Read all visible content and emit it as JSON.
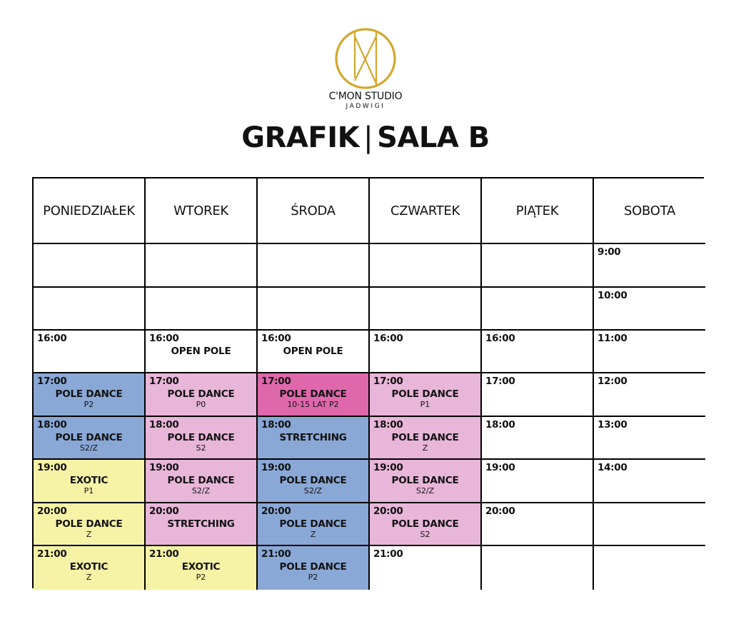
{
  "brand": {
    "name": "C'MON STUDIO",
    "location": "JADWIGI"
  },
  "title": {
    "left": "GRAFIK",
    "separator": "|",
    "right": "SALA B"
  },
  "colors": {
    "blue": "#8aa8d6",
    "pink": "#e8b6d8",
    "magenta": "#df68ac",
    "yellow": "#f6f3a6",
    "logo_gold": "#d4a72c"
  },
  "days": [
    "PONIEDZIAŁEK",
    "WTOREK",
    "ŚRODA",
    "CZWARTEK",
    "PIĄTEK",
    "SOBOTA"
  ],
  "rows": [
    [
      {},
      {},
      {},
      {},
      {},
      {
        "time": "9:00"
      }
    ],
    [
      {},
      {},
      {},
      {},
      {},
      {
        "time": "10:00"
      }
    ],
    [
      {
        "time": "16:00"
      },
      {
        "time": "16:00",
        "name": "OPEN POLE"
      },
      {
        "time": "16:00",
        "name": "OPEN POLE"
      },
      {
        "time": "16:00"
      },
      {
        "time": "16:00"
      },
      {
        "time": "11:00"
      }
    ],
    [
      {
        "time": "17:00",
        "name": "POLE DANCE",
        "level": "P2",
        "color": "blue"
      },
      {
        "time": "17:00",
        "name": "POLE DANCE",
        "level": "P0",
        "color": "pink"
      },
      {
        "time": "17:00",
        "name": "POLE DANCE",
        "level": "10-15 LAT P2",
        "color": "magenta"
      },
      {
        "time": "17:00",
        "name": "POLE DANCE",
        "level": "P1",
        "color": "pink"
      },
      {
        "time": "17:00"
      },
      {
        "time": "12:00"
      }
    ],
    [
      {
        "time": "18:00",
        "name": "POLE DANCE",
        "level": "S2/Z",
        "color": "blue"
      },
      {
        "time": "18:00",
        "name": "POLE DANCE",
        "level": "S2",
        "color": "pink"
      },
      {
        "time": "18:00",
        "name": "STRETCHING",
        "color": "blue"
      },
      {
        "time": "18:00",
        "name": "POLE DANCE",
        "level": "Z",
        "color": "pink"
      },
      {
        "time": "18:00"
      },
      {
        "time": "13:00"
      }
    ],
    [
      {
        "time": "19:00",
        "name": "EXOTIC",
        "level": "P1",
        "color": "yellow"
      },
      {
        "time": "19:00",
        "name": "POLE DANCE",
        "level": "S2/Z",
        "color": "pink"
      },
      {
        "time": "19:00",
        "name": "POLE DANCE",
        "level": "S2/Z",
        "color": "blue"
      },
      {
        "time": "19:00",
        "name": "POLE DANCE",
        "level": "S2/Z",
        "color": "pink"
      },
      {
        "time": "19:00"
      },
      {
        "time": "14:00"
      }
    ],
    [
      {
        "time": "20:00",
        "name": "POLE DANCE",
        "level": "Z",
        "color": "yellow"
      },
      {
        "time": "20:00",
        "name": "STRETCHING",
        "color": "pink"
      },
      {
        "time": "20:00",
        "name": "POLE DANCE",
        "level": "Z",
        "color": "blue"
      },
      {
        "time": "20:00",
        "name": "POLE DANCE",
        "level": "S2",
        "color": "pink"
      },
      {
        "time": "20:00"
      },
      {}
    ],
    [
      {
        "time": "21:00",
        "name": "EXOTIC",
        "level": "Z",
        "color": "yellow"
      },
      {
        "time": "21:00",
        "name": "EXOTIC",
        "level": "P2",
        "color": "yellow"
      },
      {
        "time": "21:00",
        "name": "POLE DANCE",
        "level": "P2",
        "color": "blue"
      },
      {
        "time": "21:00"
      },
      {},
      {}
    ]
  ]
}
